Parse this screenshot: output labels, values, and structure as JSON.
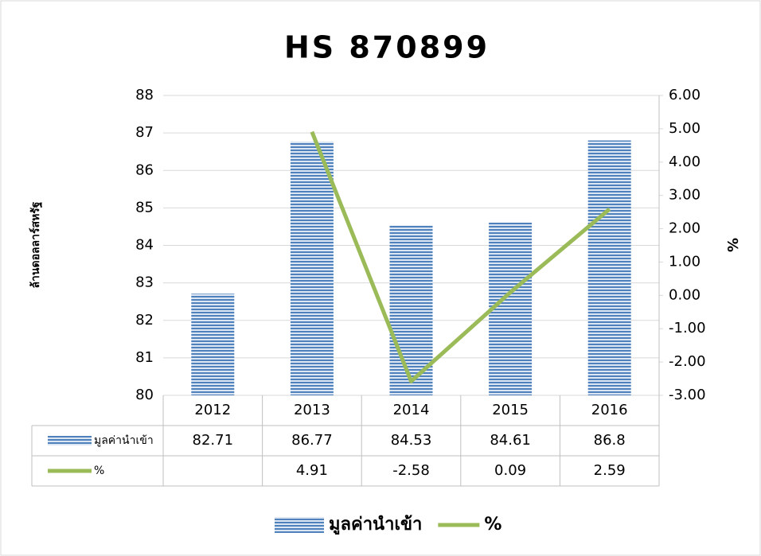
{
  "chart_data": {
    "type": "bar-line",
    "title": "HS 870899",
    "y_label": "ล้านดอลลาร์สหรัฐ",
    "y2_label": "%",
    "categories": [
      "2012",
      "2013",
      "2014",
      "2015",
      "2016"
    ],
    "series": [
      {
        "name": "มูลค่านำเข้า",
        "type": "bar",
        "color": "#4f81bd",
        "values": [
          82.71,
          86.77,
          84.53,
          84.61,
          86.8
        ]
      },
      {
        "name": "%",
        "type": "line",
        "color": "#9bbb59",
        "axis": "y2",
        "values": [
          null,
          4.91,
          -2.58,
          0.09,
          2.59
        ]
      }
    ],
    "ylim": [
      80,
      88
    ],
    "yticks": [
      80,
      81,
      82,
      83,
      84,
      85,
      86,
      87,
      88
    ],
    "y2lim": [
      -3,
      6
    ],
    "y2ticks": [
      {
        "value": -3,
        "label": "-3.00"
      },
      {
        "value": -2,
        "label": "-2.00"
      },
      {
        "value": -1,
        "label": "-1.00"
      },
      {
        "value": 0,
        "label": "0.00"
      },
      {
        "value": 1,
        "label": "1.00"
      },
      {
        "value": 2,
        "label": "2.00"
      },
      {
        "value": 3,
        "label": "3.00"
      },
      {
        "value": 4,
        "label": "4.00"
      },
      {
        "value": 5,
        "label": "5.00"
      },
      {
        "value": 6,
        "label": "6.00"
      }
    ],
    "grid": true,
    "legend": "bottom"
  }
}
